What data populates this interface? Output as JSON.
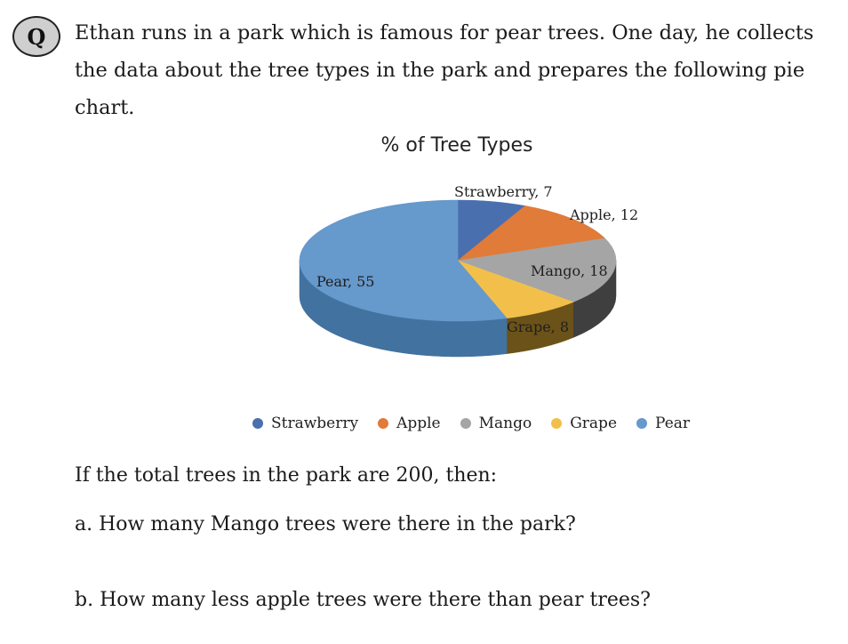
{
  "badge": {
    "label": "Q"
  },
  "question": {
    "lines": [
      "Ethan runs in a park which is famous for pear trees. One day, he collects",
      "the data about the tree types in the park and prepares the following pie",
      "chart."
    ]
  },
  "chart_data": {
    "type": "pie",
    "title": "% of Tree Types",
    "categories": [
      "Strawberry",
      "Apple",
      "Mango",
      "Grape",
      "Pear"
    ],
    "values": [
      7,
      12,
      18,
      8,
      55
    ],
    "data_labels": [
      "Strawberry, 7",
      "Apple, 12",
      "Mango, 18",
      "Grape, 8",
      "Pear, 55"
    ],
    "colors": [
      "#4a6fae",
      "#e07b39",
      "#a5a5a5",
      "#f2c04a",
      "#6699cc"
    ],
    "side_colors": [
      "#2f4d80",
      "#a3541f",
      "#3f3f3f",
      "#6b5218",
      "#42729f"
    ],
    "legend_position": "bottom",
    "style": "3d"
  },
  "body": {
    "intro": "If the total trees in the park are 200, then:",
    "question_a": "a. How many Mango trees were there in the park?",
    "question_b": "b. How many less apple trees were there than pear trees?"
  }
}
